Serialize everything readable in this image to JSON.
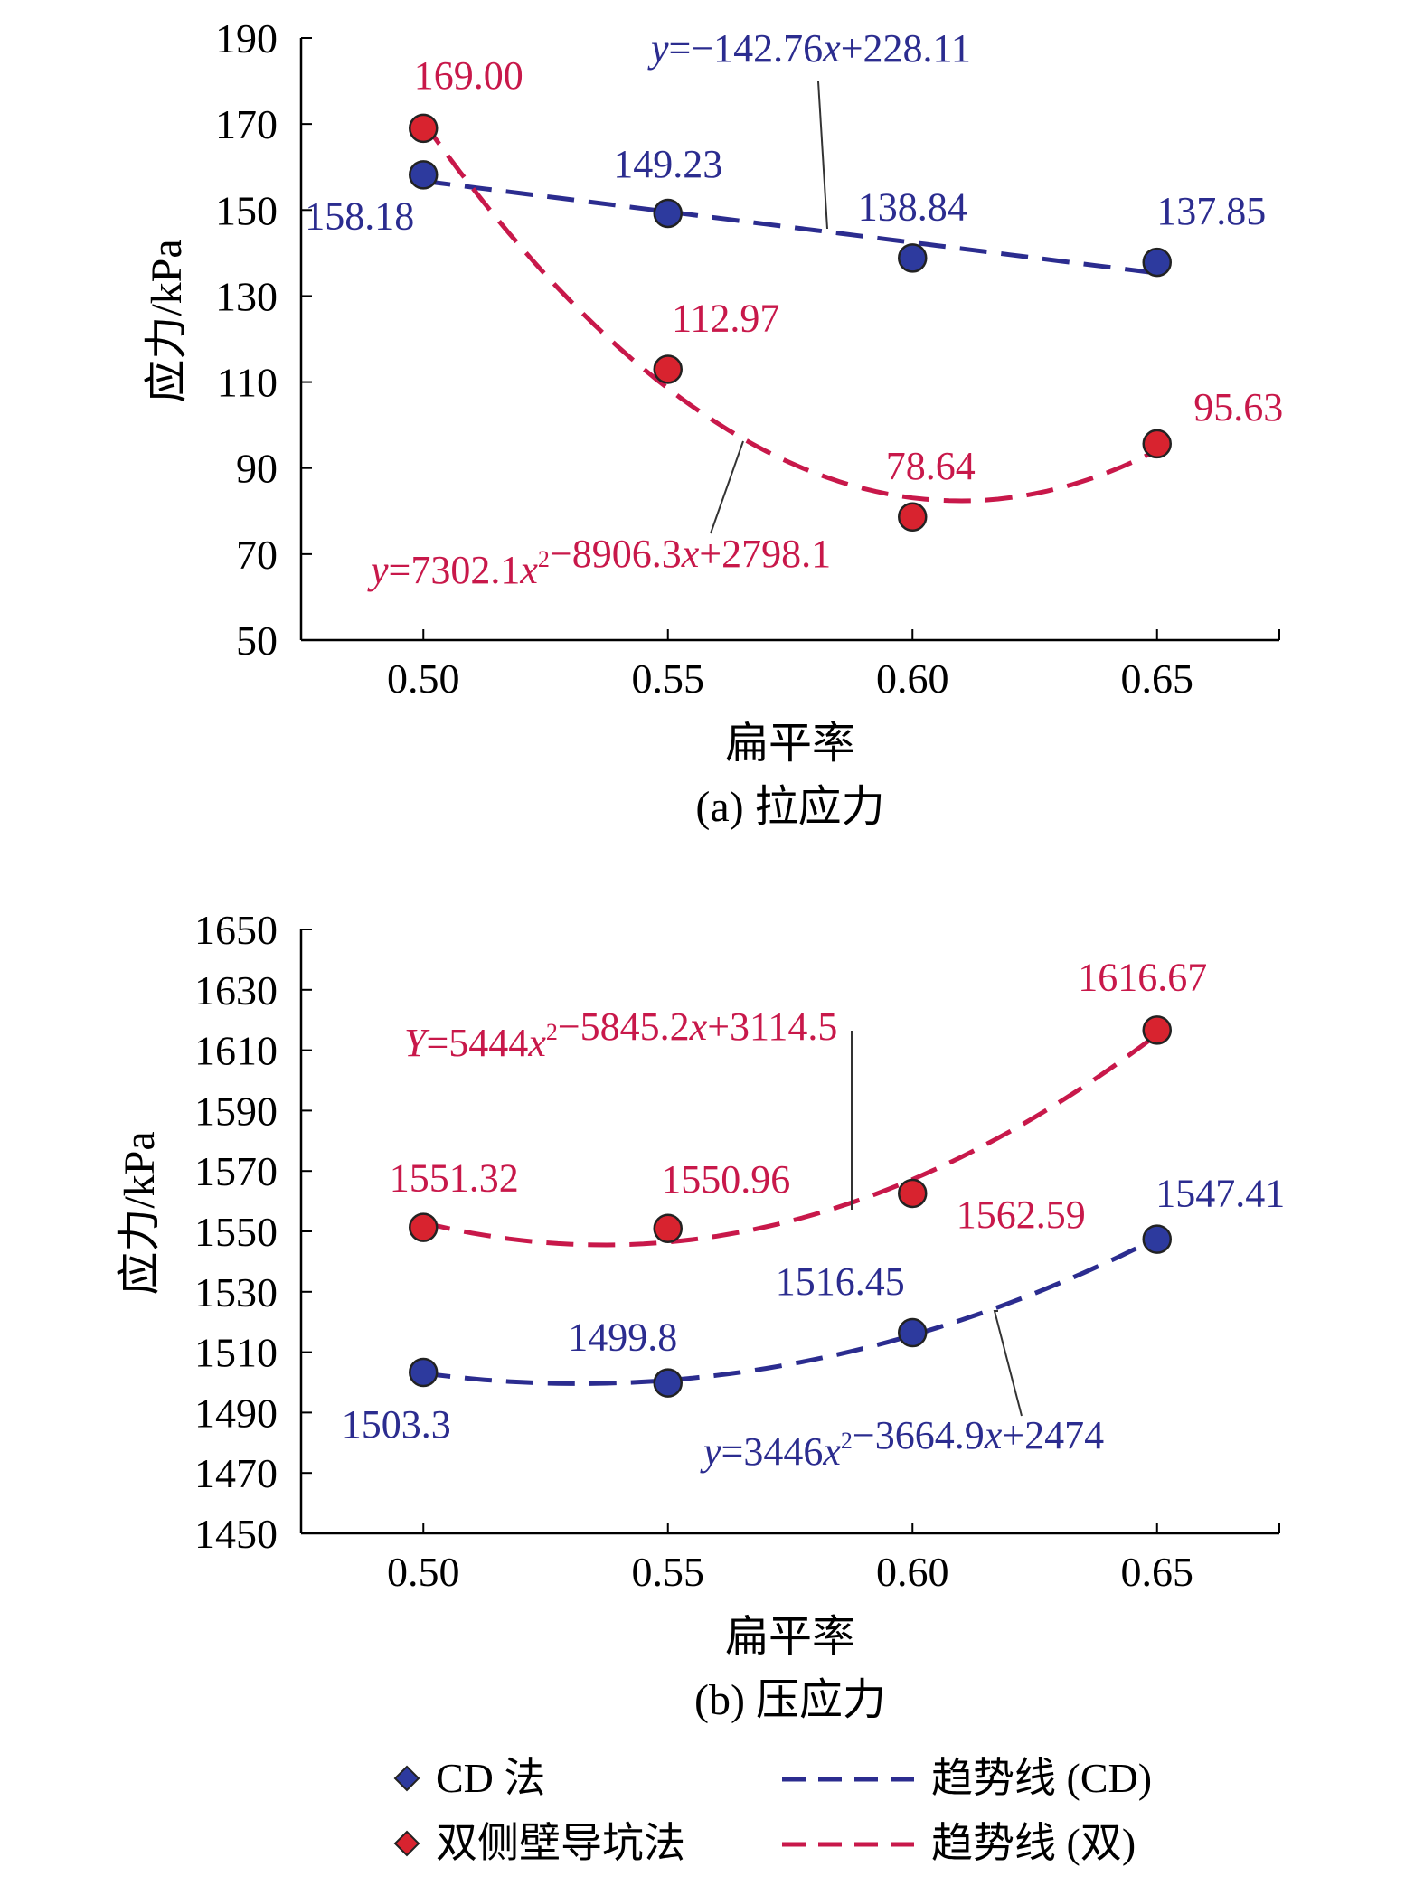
{
  "colors": {
    "cd": "#2b2c8f",
    "cd_marker": "#2d3a9e",
    "double": "#c8184a",
    "double_marker": "#d8232f",
    "axis": "#000000"
  },
  "chart_data": [
    {
      "type": "scatter",
      "caption": "(a) 拉应力",
      "xlabel": "扁平率",
      "ylabel": "应力/kPa",
      "xlim": [
        0.475,
        0.675
      ],
      "ylim": [
        50,
        190
      ],
      "x_ticks": [
        0.5,
        0.55,
        0.6,
        0.65
      ],
      "x_tick_labels": [
        "0.50",
        "0.55",
        "0.60",
        "0.65"
      ],
      "y_ticks": [
        50,
        70,
        90,
        110,
        130,
        150,
        170,
        190
      ],
      "y_tick_labels": [
        "50",
        "70",
        "90",
        "110",
        "130",
        "150",
        "170",
        "190"
      ],
      "grid": false,
      "series": [
        {
          "name": "CD 法",
          "x": [
            0.5,
            0.55,
            0.6,
            0.65
          ],
          "values": [
            158.18,
            149.23,
            138.84,
            137.85
          ],
          "labels": [
            "158.18",
            "149.23",
            "138.84",
            "137.85"
          ],
          "trend": {
            "name": "趋势线 (CD)",
            "coef": [
              0,
              -142.76,
              228.11
            ],
            "equation": "y=−142.76x+228.11"
          }
        },
        {
          "name": "双侧壁导坑法",
          "x": [
            0.5,
            0.55,
            0.6,
            0.65
          ],
          "values": [
            169.0,
            112.97,
            78.64,
            95.63
          ],
          "labels": [
            "169.00",
            "112.97",
            "78.64",
            "95.63"
          ],
          "trend": {
            "name": "趋势线 (双)",
            "coef": [
              7302.1,
              -8906.3,
              2798.1
            ],
            "equation": "y=7302.1x2−8906.3x+2798.1"
          }
        }
      ]
    },
    {
      "type": "scatter",
      "caption": "(b) 压应力",
      "xlabel": "扁平率",
      "ylabel": "应力/kPa",
      "xlim": [
        0.475,
        0.675
      ],
      "ylim": [
        1450,
        1650
      ],
      "x_ticks": [
        0.5,
        0.55,
        0.6,
        0.65
      ],
      "x_tick_labels": [
        "0.50",
        "0.55",
        "0.60",
        "0.65"
      ],
      "y_ticks": [
        1450,
        1470,
        1490,
        1510,
        1530,
        1550,
        1570,
        1590,
        1610,
        1630,
        1650
      ],
      "y_tick_labels": [
        "1450",
        "1470",
        "1490",
        "1510",
        "1530",
        "1550",
        "1570",
        "1590",
        "1610",
        "1630",
        "1650"
      ],
      "grid": false,
      "series": [
        {
          "name": "CD 法",
          "x": [
            0.5,
            0.55,
            0.6,
            0.65
          ],
          "values": [
            1503.3,
            1499.8,
            1516.45,
            1547.41
          ],
          "labels": [
            "1503.3",
            "1499.8",
            "1516.45",
            "1547.41"
          ],
          "trend": {
            "name": "趋势线 (CD)",
            "coef": [
              3446,
              -3664.9,
              2474
            ],
            "equation": "y=3446x2−3664.9x+2474"
          }
        },
        {
          "name": "双侧壁导坑法",
          "x": [
            0.5,
            0.55,
            0.6,
            0.65
          ],
          "values": [
            1551.32,
            1550.96,
            1562.59,
            1616.67
          ],
          "labels": [
            "1551.32",
            "1550.96",
            "1562.59",
            "1616.67"
          ],
          "trend": {
            "name": "趋势线 (双)",
            "coef": [
              5444,
              -5845.2,
              3114.5
            ],
            "equation": "Y=5444x2−5845.2x+3114.5"
          }
        }
      ]
    }
  ],
  "legend": {
    "position": "bottom",
    "items": [
      {
        "label": "CD 法",
        "kind": "marker",
        "series": "cd"
      },
      {
        "label": "趋势线 (CD)",
        "kind": "line",
        "series": "cd"
      },
      {
        "label": "双侧壁导坑法",
        "kind": "marker",
        "series": "double"
      },
      {
        "label": "趋势线 (双)",
        "kind": "line",
        "series": "double"
      }
    ]
  }
}
